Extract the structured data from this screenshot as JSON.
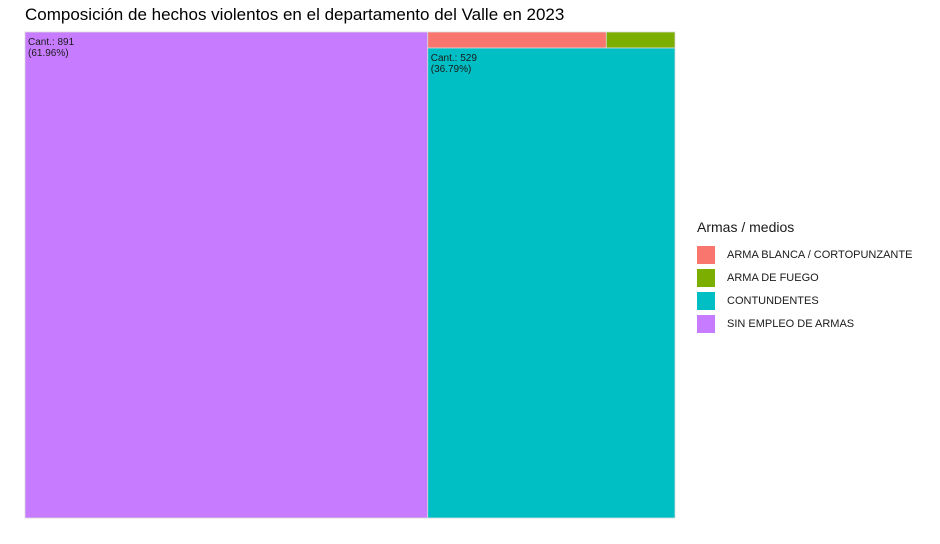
{
  "chart_data": {
    "type": "treemap",
    "title": "Composición de hechos violentos en el departamento del Valle en 2023",
    "legend_title": "Armas / medios",
    "legend_position": "right",
    "series": [
      {
        "name": "ARMA BLANCA / CORTOPUNZANTE",
        "value": 13,
        "color": "#F8766D"
      },
      {
        "name": "ARMA DE FUEGO",
        "value": 5,
        "color": "#7CAE00"
      },
      {
        "name": "CONTUNDENTES",
        "value": 529,
        "label_count": "Cant.: 529",
        "label_pct": "(36.79%)",
        "color": "#00BFC4"
      },
      {
        "name": "SIN EMPLEO DE ARMAS",
        "value": 891,
        "label_count": "Cant.: 891",
        "label_pct": "(61.96%)",
        "color": "#C77CFF"
      }
    ]
  }
}
